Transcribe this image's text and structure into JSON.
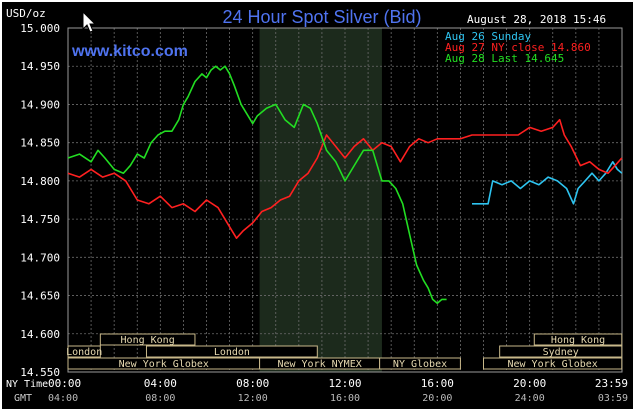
{
  "chart_data": {
    "type": "line",
    "title": "24 Hour Spot Silver (Bid)",
    "watermark": "www.kitco.com",
    "timestamp": "August 28, 2018 15:46",
    "y_unit": "USD/oz",
    "ylim": [
      14.55,
      15.0
    ],
    "yticks": [
      "15.000",
      "14.950",
      "14.900",
      "14.850",
      "14.800",
      "14.750",
      "14.700",
      "14.650",
      "14.600",
      "14.550"
    ],
    "x_range_hours": [
      0,
      24
    ],
    "x_timezone_labels": [
      "NY Time",
      "GMT"
    ],
    "x_ticks_ny": [
      "00:00",
      "04:00",
      "08:00",
      "12:00",
      "16:00",
      "20:00",
      "23:59"
    ],
    "x_ticks_gmt": [
      "04:00",
      "08:00",
      "12:00",
      "16:00",
      "20:00",
      "24:00",
      "03:59"
    ],
    "grid": true,
    "highlight_session_hours": [
      8.3,
      13.6
    ],
    "legend": [
      {
        "label": "Aug 26 Sunday",
        "color": "#2ec4f0"
      },
      {
        "label": "Aug 27 NY close 14.860",
        "color": "#ff2020"
      },
      {
        "label": "Aug 28 Last 14.645",
        "color": "#22dd22"
      }
    ],
    "series": [
      {
        "name": "Aug 26 Sunday",
        "color": "#2ec4f0",
        "x": [
          17.5,
          18.2,
          18.4,
          18.8,
          19.2,
          19.6,
          20.0,
          20.4,
          20.8,
          21.2,
          21.6,
          21.9,
          22.1,
          22.4,
          22.7,
          23.0,
          23.3,
          23.6,
          23.8,
          23.99
        ],
        "y": [
          14.77,
          14.77,
          14.8,
          14.795,
          14.8,
          14.79,
          14.8,
          14.795,
          14.805,
          14.8,
          14.79,
          14.77,
          14.79,
          14.8,
          14.81,
          14.8,
          14.81,
          14.825,
          14.815,
          14.81
        ]
      },
      {
        "name": "Aug 27 NY close 14.860",
        "color": "#ff2020",
        "x": [
          0,
          0.5,
          1.0,
          1.5,
          2.0,
          2.5,
          3.0,
          3.5,
          4.0,
          4.5,
          5.0,
          5.5,
          6.0,
          6.5,
          7.0,
          7.3,
          7.6,
          8.0,
          8.4,
          8.8,
          9.2,
          9.6,
          10.0,
          10.4,
          10.8,
          11.2,
          11.6,
          12.0,
          12.4,
          12.8,
          13.2,
          13.6,
          14.0,
          14.4,
          14.8,
          15.2,
          15.6,
          16.0,
          16.5,
          17.0,
          17.5,
          18.0,
          18.5,
          19.0,
          19.5,
          20.0,
          20.5,
          21.0,
          21.3,
          21.5,
          21.8,
          22.2,
          22.6,
          23.0,
          23.4,
          23.7,
          23.99
        ],
        "y": [
          14.81,
          14.805,
          14.815,
          14.805,
          14.81,
          14.8,
          14.775,
          14.77,
          14.78,
          14.765,
          14.77,
          14.76,
          14.775,
          14.765,
          14.74,
          14.725,
          14.735,
          14.745,
          14.76,
          14.765,
          14.775,
          14.78,
          14.8,
          14.81,
          14.83,
          14.86,
          14.845,
          14.83,
          14.845,
          14.855,
          14.84,
          14.85,
          14.845,
          14.825,
          14.845,
          14.855,
          14.85,
          14.855,
          14.855,
          14.855,
          14.86,
          14.86,
          14.86,
          14.86,
          14.86,
          14.87,
          14.865,
          14.87,
          14.88,
          14.86,
          14.845,
          14.82,
          14.825,
          14.815,
          14.81,
          14.82,
          14.83
        ]
      },
      {
        "name": "Aug 28 Last 14.645",
        "color": "#22dd22",
        "x": [
          0,
          0.5,
          1.0,
          1.3,
          1.6,
          2.0,
          2.4,
          2.7,
          3.0,
          3.3,
          3.6,
          3.9,
          4.2,
          4.5,
          4.8,
          5.0,
          5.2,
          5.5,
          5.8,
          6.0,
          6.2,
          6.4,
          6.6,
          6.8,
          7.0,
          7.2,
          7.5,
          7.8,
          8.0,
          8.2,
          8.6,
          9.0,
          9.4,
          9.8,
          10.2,
          10.5,
          10.8,
          11.2,
          11.6,
          12.0,
          12.4,
          12.8,
          13.2,
          13.6,
          13.9,
          14.2,
          14.5,
          14.8,
          15.1,
          15.4,
          15.6,
          15.8,
          16.0,
          16.2,
          16.4
        ],
        "y": [
          14.83,
          14.835,
          14.825,
          14.84,
          14.83,
          14.815,
          14.81,
          14.82,
          14.835,
          14.83,
          14.85,
          14.86,
          14.865,
          14.865,
          14.88,
          14.9,
          14.91,
          14.93,
          14.94,
          14.935,
          14.945,
          14.95,
          14.945,
          14.95,
          14.94,
          14.925,
          14.9,
          14.885,
          14.875,
          14.885,
          14.895,
          14.9,
          14.88,
          14.87,
          14.9,
          14.895,
          14.875,
          14.84,
          14.825,
          14.8,
          14.82,
          14.84,
          14.84,
          14.8,
          14.8,
          14.79,
          14.77,
          14.73,
          14.69,
          14.67,
          14.66,
          14.645,
          14.64,
          14.645,
          14.645
        ]
      }
    ],
    "sessions": [
      {
        "name": "Hong Kong",
        "start": 1.4,
        "end": 5.5,
        "row": 0
      },
      {
        "name": "Hong Kong",
        "start": 20.2,
        "end": 23.99,
        "row": 0
      },
      {
        "name": "London",
        "start": 0,
        "end": 1.4,
        "row": 1
      },
      {
        "name": "London",
        "start": 3.4,
        "end": 10.8,
        "row": 1
      },
      {
        "name": "Sydney",
        "start": 18.7,
        "end": 23.99,
        "row": 1
      },
      {
        "name": "New York Globex",
        "start": 0,
        "end": 8.3,
        "row": 2
      },
      {
        "name": "New York NYMEX",
        "start": 8.3,
        "end": 13.5,
        "row": 2
      },
      {
        "name": "NY Globex",
        "start": 13.5,
        "end": 17.0,
        "row": 2
      },
      {
        "name": "New York Globex",
        "start": 18.0,
        "end": 23.99,
        "row": 2
      }
    ]
  }
}
